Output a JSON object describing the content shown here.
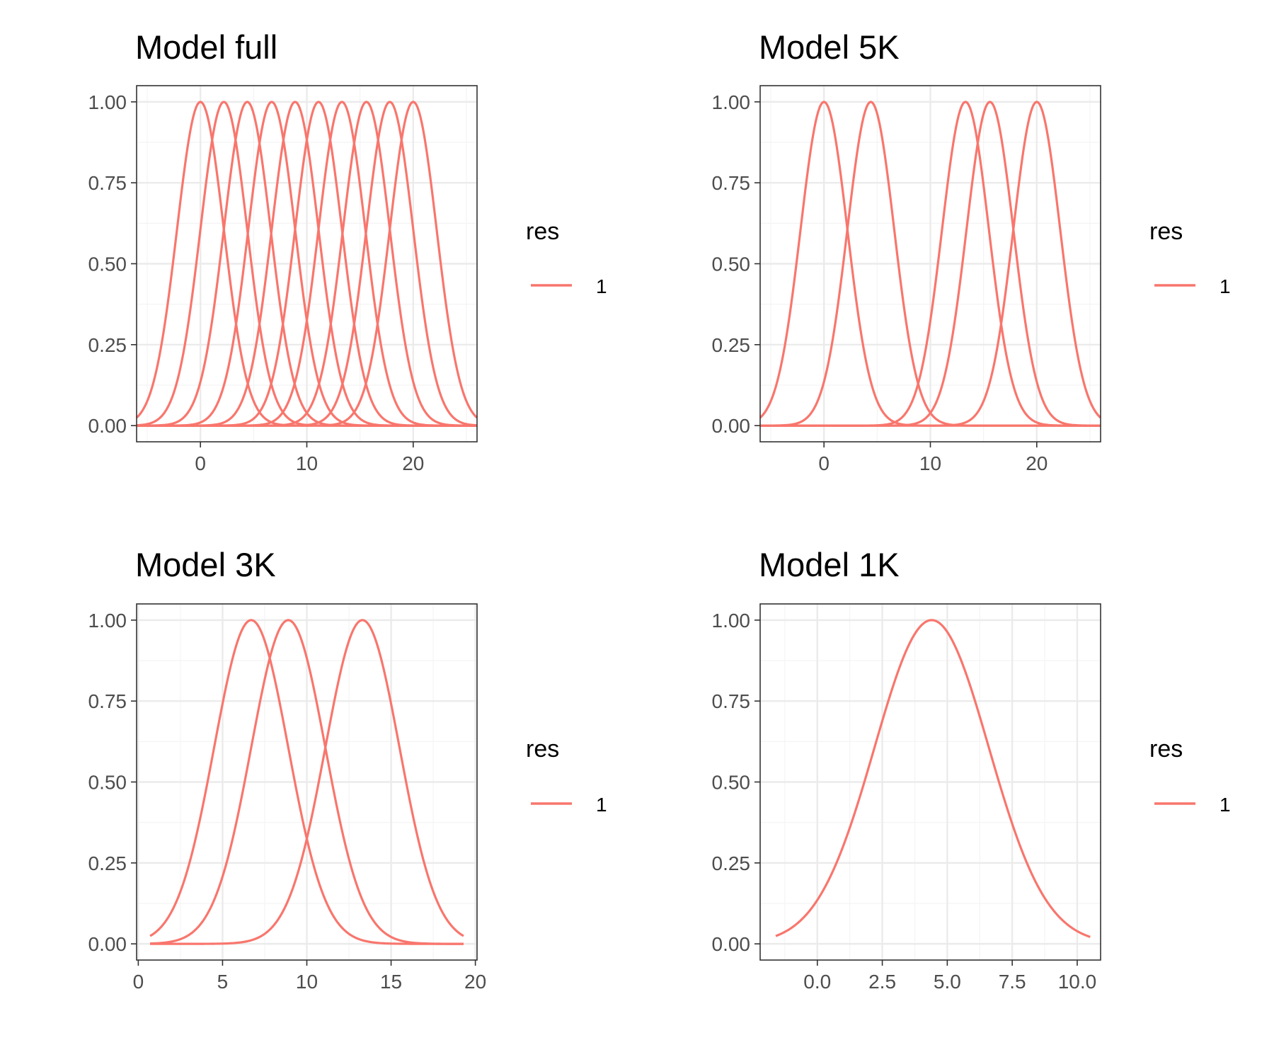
{
  "colors": {
    "series": "#F8766D",
    "grid_major": "#EBEBEB",
    "grid_minor": "#F4F4F4",
    "panel_border": "#333333",
    "tick_text": "#4D4D4D"
  },
  "chart_data": [
    {
      "type": "line",
      "title": "Model full",
      "xlim": [
        -6,
        26
      ],
      "ylim": [
        -0.05,
        1.05
      ],
      "xticks": [
        0,
        10,
        20
      ],
      "xtick_labels": [
        "0",
        "10",
        "20"
      ],
      "yticks": [
        0,
        0.25,
        0.5,
        0.75,
        1
      ],
      "ytick_labels": [
        "0.00",
        "0.25",
        "0.50",
        "0.75",
        "1.00"
      ],
      "grid": true,
      "x_range": [
        -6,
        26
      ],
      "curve_sd": 2.2,
      "peaks_x": [
        0,
        2.2,
        4.4,
        6.7,
        8.9,
        11.1,
        13.3,
        15.6,
        17.8,
        20
      ],
      "legend": {
        "title": "res",
        "labels": [
          "1"
        ],
        "position": "right"
      }
    },
    {
      "type": "line",
      "title": "Model 5K",
      "xlim": [
        -6,
        26
      ],
      "ylim": [
        -0.05,
        1.05
      ],
      "xticks": [
        0,
        10,
        20
      ],
      "xtick_labels": [
        "0",
        "10",
        "20"
      ],
      "yticks": [
        0,
        0.25,
        0.5,
        0.75,
        1
      ],
      "ytick_labels": [
        "0.00",
        "0.25",
        "0.50",
        "0.75",
        "1.00"
      ],
      "grid": true,
      "x_range": [
        -6,
        26
      ],
      "curve_sd": 2.2,
      "peaks_x": [
        0,
        4.4,
        13.3,
        15.6,
        20
      ],
      "legend": {
        "title": "res",
        "labels": [
          "1"
        ],
        "position": "right"
      }
    },
    {
      "type": "line",
      "title": "Model 3K",
      "xlim": [
        -0.1,
        20.1
      ],
      "ylim": [
        -0.05,
        1.05
      ],
      "xticks": [
        0,
        5,
        10,
        15,
        20
      ],
      "xtick_labels": [
        "0",
        "5",
        "10",
        "15",
        "20"
      ],
      "yticks": [
        0,
        0.25,
        0.5,
        0.75,
        1
      ],
      "ytick_labels": [
        "0.00",
        "0.25",
        "0.50",
        "0.75",
        "1.00"
      ],
      "grid": true,
      "x_range": [
        0.7,
        19.3
      ],
      "curve_sd": 2.2,
      "peaks_x": [
        6.7,
        8.9,
        13.3
      ],
      "legend": {
        "title": "res",
        "labels": [
          "1"
        ],
        "position": "right"
      }
    },
    {
      "type": "line",
      "title": "Model 1K",
      "xlim": [
        -2.2,
        10.9
      ],
      "ylim": [
        -0.05,
        1.05
      ],
      "xticks": [
        0,
        2.5,
        5,
        7.5,
        10
      ],
      "xtick_labels": [
        "0.0",
        "2.5",
        "5.0",
        "7.5",
        "10.0"
      ],
      "grid": true,
      "yticks": [
        0,
        0.25,
        0.5,
        0.75,
        1
      ],
      "ytick_labels": [
        "0.00",
        "0.25",
        "0.50",
        "0.75",
        "1.00"
      ],
      "x_range": [
        -1.6,
        10.5
      ],
      "curve_sd": 2.2,
      "peaks_x": [
        4.4
      ],
      "legend": {
        "title": "res",
        "labels": [
          "1"
        ],
        "position": "right"
      }
    }
  ]
}
